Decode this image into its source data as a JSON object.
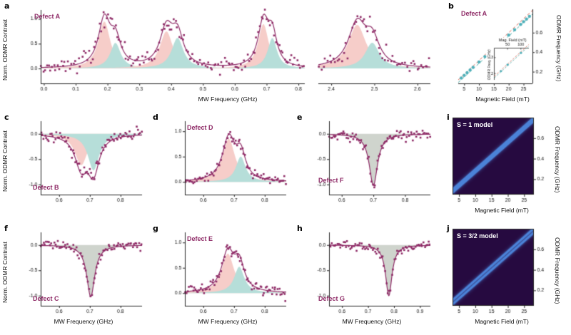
{
  "colors": {
    "accent_purple": "#8e2a66",
    "pink_fill": "#f6cdc9",
    "teal_fill": "#b6ded9",
    "gray_fill": "#cfd4cd",
    "scatter_teal": "#4fb0ba",
    "line_red": "#d95f4c",
    "line_teal": "#49a8a2",
    "heat_bg": "#260a40",
    "heat_line": "#4b82d8"
  },
  "chart_data": [
    {
      "panel": "a",
      "letter": "a",
      "type": "line",
      "defect": "Defect A",
      "ylabel": "Norm. ODMR Contrast",
      "xlabel": "MW Frequency (GHz)",
      "ylim": [
        -0.3,
        1.18
      ],
      "yticks": [
        0.0,
        0.5,
        1.0
      ],
      "segments": [
        {
          "xlim": [
            -0.01,
            0.82
          ],
          "xticks": [
            0.0,
            0.1,
            0.2,
            0.3,
            0.4,
            0.5,
            0.6,
            0.7,
            0.8
          ],
          "peaks": [
            {
              "center": 0.19,
              "amplitude": 0.95,
              "fwhm": 0.045,
              "color": "pink"
            },
            {
              "center": 0.225,
              "amplitude": 0.52,
              "fwhm": 0.04,
              "color": "teal"
            },
            {
              "center": 0.385,
              "amplitude": 0.75,
              "fwhm": 0.05,
              "color": "pink"
            },
            {
              "center": 0.42,
              "amplitude": 0.62,
              "fwhm": 0.045,
              "color": "teal"
            },
            {
              "center": 0.69,
              "amplitude": 0.9,
              "fwhm": 0.04,
              "color": "pink"
            },
            {
              "center": 0.718,
              "amplitude": 0.62,
              "fwhm": 0.035,
              "color": "teal"
            }
          ],
          "n_points": 150,
          "noise": 0.085,
          "seed": 7
        },
        {
          "xlim": [
            2.37,
            2.63
          ],
          "xticks": [
            2.4,
            2.5,
            2.6
          ],
          "peaks": [
            {
              "center": 2.46,
              "amplitude": 0.88,
              "fwhm": 0.05,
              "color": "pink"
            },
            {
              "center": 2.495,
              "amplitude": 0.52,
              "fwhm": 0.04,
              "color": "teal"
            }
          ],
          "n_points": 55,
          "noise": 0.09,
          "seed": 8
        }
      ]
    },
    {
      "panel": "b",
      "letter": "b",
      "type": "scatter",
      "defect": "Defect A",
      "xlabel": "Magnetic Field (mT)",
      "ylabel_right": "ODMR Frequency (GHz)",
      "xlim": [
        3,
        28
      ],
      "xticks": [
        5,
        10,
        15,
        20,
        25
      ],
      "ylim": [
        0.08,
        0.84
      ],
      "yticks": [
        0.2,
        0.4,
        0.6
      ],
      "points_x": [
        4,
        5,
        6,
        7,
        8,
        10,
        12,
        14,
        15,
        16,
        18,
        20,
        22,
        24,
        25,
        26,
        27
      ],
      "points_y": [
        0.135,
        0.162,
        0.19,
        0.217,
        0.245,
        0.3,
        0.355,
        0.41,
        0.438,
        0.465,
        0.52,
        0.575,
        0.63,
        0.685,
        0.713,
        0.74,
        0.768
      ],
      "lines": [
        {
          "slope": 0.0285,
          "intercept": 0.03,
          "color": "#d95f4c",
          "dash": [
            4,
            3
          ]
        },
        {
          "slope": 0.028,
          "intercept": 0.005,
          "color": "#49a8a2",
          "dash": [
            4,
            3
          ]
        }
      ],
      "inset": {
        "title": "Mag. Field (mT)",
        "ylabel": "ODMR Freq. (GHz)",
        "xticks_top": [
          50,
          100
        ],
        "yticks": [
          2,
          3
        ],
        "xlim": [
          0,
          130
        ],
        "ylim": [
          1.6,
          3.6
        ],
        "points_x": [
          25,
          50,
          100
        ],
        "points_y": [
          2.15,
          2.55,
          3.3
        ],
        "lines": [
          {
            "slope": 0.0155,
            "intercept": 1.82,
            "color": "#d95f4c"
          },
          {
            "slope": 0.0155,
            "intercept": 1.72,
            "color": "#49a8a2"
          }
        ]
      }
    },
    {
      "panel": "c",
      "letter": "c",
      "type": "line",
      "defect": "Defect B",
      "ylabel": "Norm. ODMR Contrast",
      "xlim": [
        0.54,
        0.87
      ],
      "xticks": [
        0.6,
        0.7,
        0.8
      ],
      "ylim": [
        -1.2,
        0.25
      ],
      "yticks": [
        0.0,
        -0.5,
        -1.0
      ],
      "peaks": [
        {
          "center": 0.672,
          "amplitude": -0.62,
          "fwhm": 0.05,
          "color": "pink"
        },
        {
          "center": 0.712,
          "amplitude": -0.72,
          "fwhm": 0.045,
          "color": "teal"
        }
      ],
      "n_points": 80,
      "noise": 0.07,
      "seed": 13
    },
    {
      "panel": "d",
      "letter": "d",
      "type": "line",
      "defect": "Defect D",
      "xlim": [
        0.54,
        0.87
      ],
      "xticks": [
        0.6,
        0.7,
        0.8
      ],
      "ylim": [
        -0.25,
        1.2
      ],
      "yticks": [
        0.0,
        0.5,
        1.0
      ],
      "peaks": [
        {
          "center": 0.683,
          "amplitude": 0.85,
          "fwhm": 0.05,
          "color": "pink"
        },
        {
          "center": 0.722,
          "amplitude": 0.5,
          "fwhm": 0.038,
          "color": "teal"
        }
      ],
      "n_points": 80,
      "noise": 0.05,
      "seed": 17
    },
    {
      "panel": "e",
      "letter": "e",
      "type": "line",
      "defect": "Defect F",
      "xlim": [
        0.56,
        0.88
      ],
      "xticks": [
        0.6,
        0.7,
        0.8
      ],
      "ylim": [
        -1.2,
        0.25
      ],
      "yticks": [
        0.0,
        -0.5,
        -1.0
      ],
      "peaks": [
        {
          "center": 0.7,
          "amplitude": -1.02,
          "fwhm": 0.032,
          "color": "gray"
        }
      ],
      "n_points": 80,
      "noise": 0.05,
      "seed": 19
    },
    {
      "panel": "f",
      "letter": "f",
      "type": "line",
      "defect": "Defect C",
      "ylabel": "Norm. ODMR Contrast",
      "xlabel": "MW Frequency (GHz)",
      "xlim": [
        0.54,
        0.87
      ],
      "xticks": [
        0.6,
        0.7,
        0.8
      ],
      "ylim": [
        -1.2,
        0.25
      ],
      "yticks": [
        0.0,
        -0.5,
        -1.0
      ],
      "peaks": [
        {
          "center": 0.703,
          "amplitude": -1.02,
          "fwhm": 0.032,
          "color": "gray"
        }
      ],
      "n_points": 80,
      "noise": 0.05,
      "seed": 23
    },
    {
      "panel": "g",
      "letter": "g",
      "type": "line",
      "defect": "Defect E",
      "xlabel": "MW Frequency (GHz)",
      "xlim": [
        0.54,
        0.87
      ],
      "xticks": [
        0.6,
        0.7,
        0.8
      ],
      "ylim": [
        -0.25,
        1.2
      ],
      "yticks": [
        0.0,
        0.5,
        1.0
      ],
      "peaks": [
        {
          "center": 0.68,
          "amplitude": 0.78,
          "fwhm": 0.05,
          "color": "pink"
        },
        {
          "center": 0.717,
          "amplitude": 0.52,
          "fwhm": 0.04,
          "color": "teal"
        }
      ],
      "n_points": 80,
      "noise": 0.06,
      "seed": 29
    },
    {
      "panel": "h",
      "letter": "h",
      "type": "line",
      "defect": "Defect G",
      "xlabel": "MW Frequency (GHz)",
      "xlim": [
        0.55,
        0.94
      ],
      "xticks": [
        0.6,
        0.7,
        0.8,
        0.9
      ],
      "ylim": [
        -1.2,
        0.25
      ],
      "yticks": [
        0.0,
        -0.5,
        -1.0
      ],
      "peaks": [
        {
          "center": 0.78,
          "amplitude": -1.0,
          "fwhm": 0.03,
          "color": "gray"
        }
      ],
      "n_points": 80,
      "noise": 0.045,
      "seed": 31
    },
    {
      "panel": "i",
      "letter": "i",
      "type": "heatmap",
      "model_label": "S = 1 model",
      "xlabel": "Magnetic Field (mT)",
      "ylabel_right": "ODMR Frequency (GHz)",
      "xlim": [
        3,
        28
      ],
      "xticks": [
        5,
        10,
        15,
        20,
        25
      ],
      "ylim": [
        0.05,
        0.8
      ],
      "yticks": [
        0.2,
        0.4,
        0.6
      ],
      "bg_color": "#260a40",
      "line_color": "#4b82d8",
      "branches": [
        {
          "slope": 0.028,
          "intercept": 0.016
        },
        {
          "slope": 0.028,
          "intercept": -0.016
        }
      ],
      "sigma": 0.01
    },
    {
      "panel": "j",
      "letter": "j",
      "type": "heatmap",
      "model_label": "S = 3/2 model",
      "xlabel": "Magnetic Field (mT)",
      "ylabel_right": "ODMR Frequency (GHz)",
      "xlim": [
        3,
        28
      ],
      "xticks": [
        5,
        10,
        15,
        20,
        25
      ],
      "ylim": [
        0.05,
        0.8
      ],
      "yticks": [
        0.2,
        0.4,
        0.6
      ],
      "bg_color": "#260a40",
      "line_color": "#4b82d8",
      "branches": [
        {
          "slope": 0.028,
          "intercept": 0.021
        },
        {
          "slope": 0.028,
          "intercept": -0.021
        }
      ],
      "sigma": 0.01
    }
  ]
}
